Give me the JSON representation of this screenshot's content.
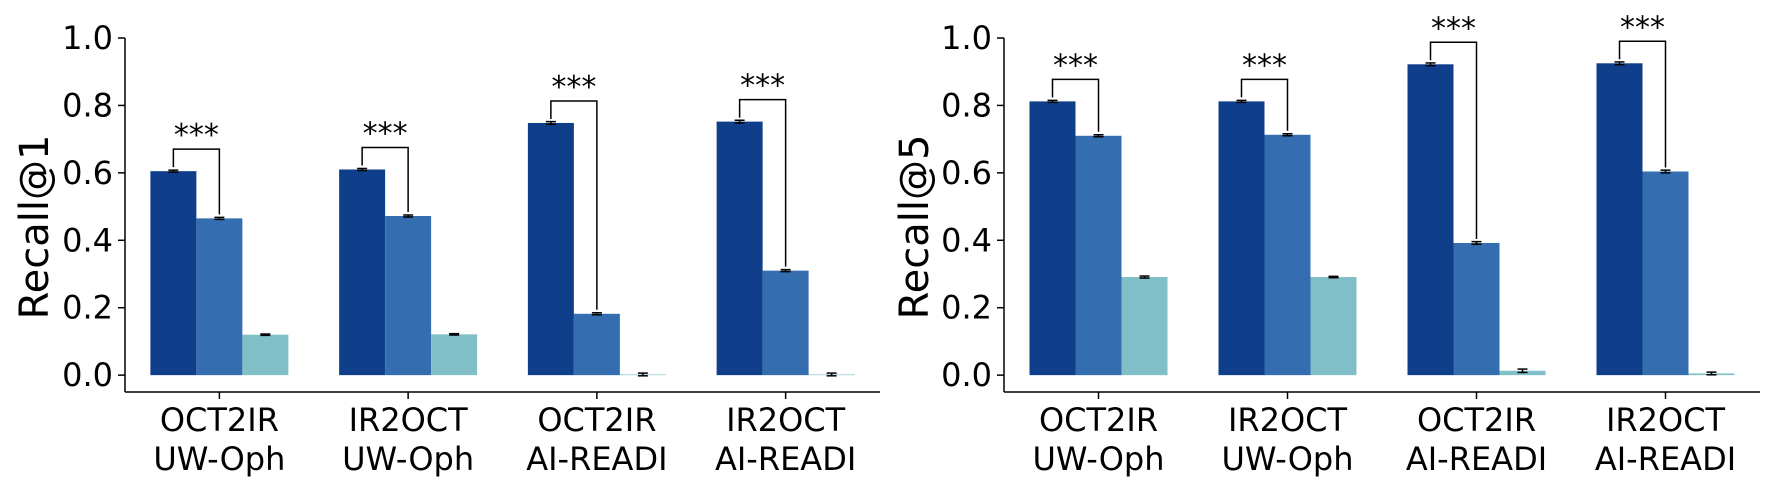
{
  "colors": {
    "series": [
      "#0f3f8a",
      "#356eb0",
      "#80bec8"
    ],
    "axis": "#000000",
    "error_bar": "#000000"
  },
  "chart_data": [
    {
      "type": "bar",
      "categories": [
        [
          "OCT2IR",
          "UW-Oph"
        ],
        [
          "IR2OCT",
          "UW-Oph"
        ],
        [
          "OCT2IR",
          "AI-READI"
        ],
        [
          "IR2OCT",
          "AI-READI"
        ]
      ],
      "series": [
        {
          "values": [
            0.605,
            0.61,
            0.748,
            0.752
          ]
        },
        {
          "values": [
            0.465,
            0.472,
            0.182,
            0.31
          ]
        },
        {
          "values": [
            0.12,
            0.121,
            0.002,
            0.002
          ]
        }
      ],
      "errors": [
        [
          0.003,
          0.003,
          0.004,
          0.004
        ],
        [
          0.003,
          0.003,
          0.003,
          0.003
        ],
        [
          0.002,
          0.002,
          0.004,
          0.004
        ]
      ],
      "significance": [
        {
          "category": 0,
          "label": "***"
        },
        {
          "category": 1,
          "label": "***"
        },
        {
          "category": 2,
          "label": "***"
        },
        {
          "category": 3,
          "label": "***"
        }
      ],
      "ylabel": "Recall@1",
      "xlabel": "",
      "ylim": [
        -0.05,
        1.0
      ],
      "yticks": [
        0.0,
        0.2,
        0.4,
        0.6,
        0.8,
        1.0
      ],
      "ytick_labels": [
        "0.0",
        "0.2",
        "0.4",
        "0.6",
        "0.8",
        "1.0"
      ],
      "grid": false,
      "legend": "none"
    },
    {
      "type": "bar",
      "categories": [
        [
          "OCT2IR",
          "UW-Oph"
        ],
        [
          "IR2OCT",
          "UW-Oph"
        ],
        [
          "OCT2IR",
          "AI-READI"
        ],
        [
          "IR2OCT",
          "AI-READI"
        ]
      ],
      "series": [
        {
          "values": [
            0.812,
            0.812,
            0.922,
            0.925
          ]
        },
        {
          "values": [
            0.71,
            0.713,
            0.392,
            0.604
          ]
        },
        {
          "values": [
            0.291,
            0.291,
            0.013,
            0.005
          ]
        }
      ],
      "errors": [
        [
          0.003,
          0.003,
          0.004,
          0.004
        ],
        [
          0.003,
          0.003,
          0.004,
          0.004
        ],
        [
          0.003,
          0.002,
          0.005,
          0.004
        ]
      ],
      "significance": [
        {
          "category": 0,
          "label": "***"
        },
        {
          "category": 1,
          "label": "***"
        },
        {
          "category": 2,
          "label": "***"
        },
        {
          "category": 3,
          "label": "***"
        }
      ],
      "ylabel": "Recall@5",
      "xlabel": "",
      "ylim": [
        -0.05,
        1.0
      ],
      "yticks": [
        0.0,
        0.2,
        0.4,
        0.6,
        0.8,
        1.0
      ],
      "ytick_labels": [
        "0.0",
        "0.2",
        "0.4",
        "0.6",
        "0.8",
        "1.0"
      ],
      "grid": false,
      "legend": "none"
    }
  ]
}
